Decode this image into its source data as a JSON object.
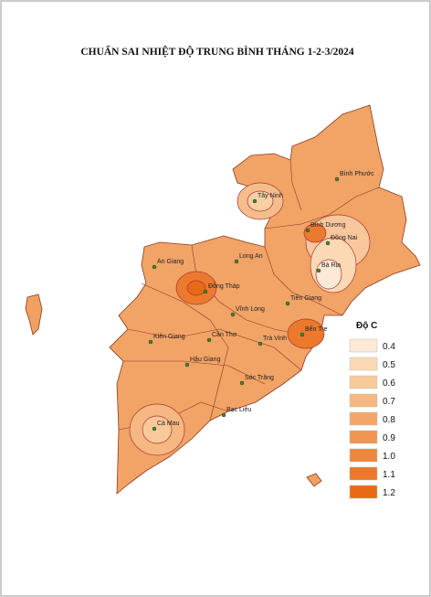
{
  "title": "CHUẨN SAI NHIỆT ĐỘ TRUNG BÌNH THÁNG 1-2-3/2024",
  "places": [
    "Bình Phước",
    "Tây Ninh",
    "Bình Dương",
    "Đồng Nai",
    "Bà Rịa",
    "Long An",
    "An Giang",
    "Đồng Tháp",
    "Tiền Giang",
    "Vĩnh Long",
    "Bến Tre",
    "Trà Vinh",
    "Cần Thơ",
    "Kiên Giang",
    "Hậu Giang",
    "Sóc Trăng",
    "Bạc Liêu",
    "Cà Mau"
  ],
  "legend": {
    "title": "Độ C",
    "items": [
      {
        "label": "0.4",
        "color": "#fde9d5"
      },
      {
        "label": "0.5",
        "color": "#fbd9b5"
      },
      {
        "label": "0.6",
        "color": "#f9c99a"
      },
      {
        "label": "0.7",
        "color": "#f6b882"
      },
      {
        "label": "0.8",
        "color": "#f4a66a"
      },
      {
        "label": "0.9",
        "color": "#f19553"
      },
      {
        "label": "1.0",
        "color": "#ee863f"
      },
      {
        "label": "1.1",
        "color": "#ec772a"
      },
      {
        "label": "1.2",
        "color": "#e96a14"
      }
    ]
  }
}
